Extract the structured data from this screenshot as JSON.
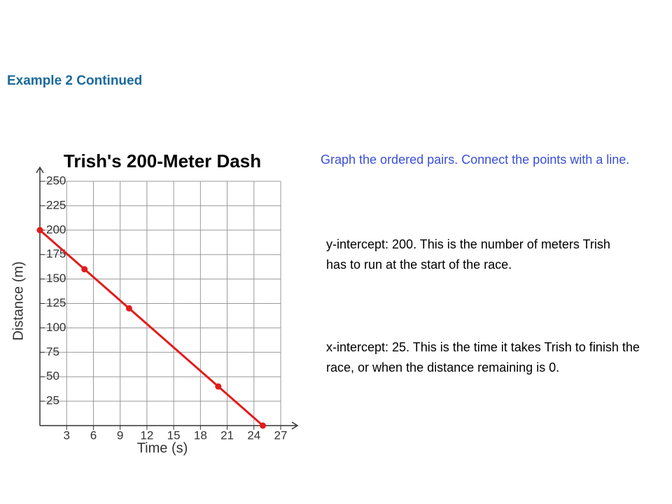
{
  "header": {
    "title": "Example 2 Continued"
  },
  "notes": [
    "Graph the ordered pairs. Connect the points with a line.",
    "y-intercept: 200. This is the number of meters Trish has to run at the start of the race.",
    "x-intercept: 25. This is the time it takes Trish to finish the race, or when the distance remaining is 0."
  ],
  "chart_data": {
    "type": "line",
    "title": "Trish's 200-Meter Dash",
    "x_label": "Time (s)",
    "y_label": "Distance (m)",
    "x": [
      0,
      5,
      10,
      20,
      25
    ],
    "values": [
      200,
      160,
      120,
      40,
      0
    ],
    "color": "#e31b1b",
    "xlim": [
      0,
      27
    ],
    "ylim": [
      0,
      250
    ],
    "xticks": [
      3,
      6,
      9,
      12,
      15,
      18,
      21,
      24,
      27
    ],
    "yticks": [
      25,
      50,
      75,
      100,
      125,
      150,
      175,
      200,
      225,
      250
    ],
    "grid": true
  }
}
